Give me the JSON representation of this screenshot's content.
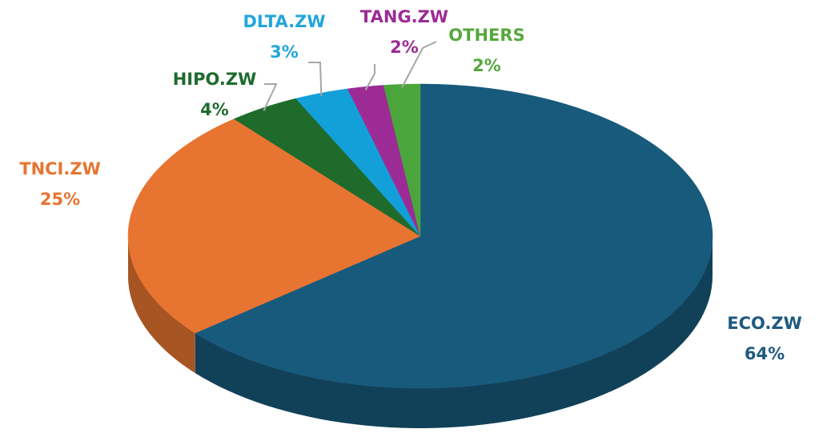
{
  "chart_data": {
    "type": "pie",
    "categories": [
      "ECO.ZW",
      "TNCI.ZW",
      "HIPO.ZW",
      "DLTA.ZW",
      "TANG.ZW",
      "OTHERS"
    ],
    "values": [
      64,
      25,
      4,
      3,
      2,
      2
    ],
    "value_labels": [
      "64%",
      "25%",
      "4%",
      "3%",
      "2%",
      "2%"
    ],
    "colors": [
      "#175a7c",
      "#e87431",
      "#1e6b2c",
      "#139fd8",
      "#9c2b96",
      "#4aa63a"
    ]
  }
}
